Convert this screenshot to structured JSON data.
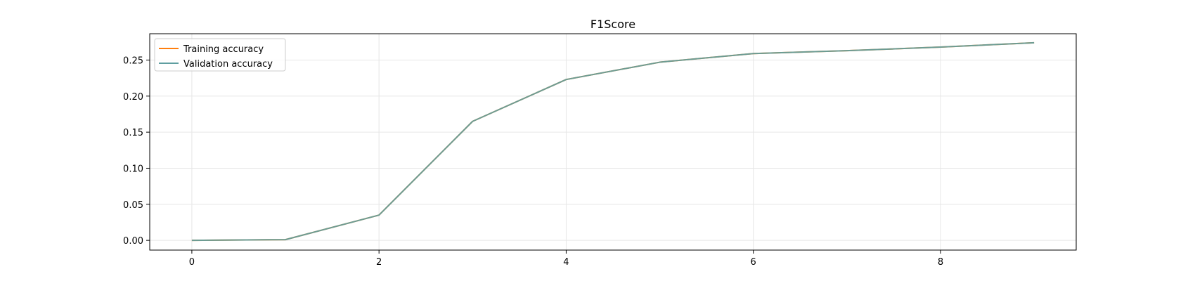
{
  "chart_data": {
    "type": "line",
    "title": "F1Score",
    "xlabel": "",
    "ylabel": "",
    "x": [
      0,
      1,
      2,
      3,
      4,
      5,
      6,
      7,
      8,
      9
    ],
    "xlim": [
      -0.45,
      9.45
    ],
    "ylim": [
      -0.0135,
      0.2865
    ],
    "xticks": [
      0,
      2,
      4,
      6,
      8
    ],
    "xtick_labels": [
      "0",
      "2",
      "4",
      "6",
      "8"
    ],
    "yticks": [
      0.0,
      0.05,
      0.1,
      0.15,
      0.2,
      0.25
    ],
    "ytick_labels": [
      "0.00",
      "0.05",
      "0.10",
      "0.15",
      "0.20",
      "0.25"
    ],
    "grid": true,
    "legend_position": "top-left",
    "series": [
      {
        "name": "Training accuracy",
        "color": "#ff7f0e",
        "values": [
          0.0,
          0.001,
          0.035,
          0.165,
          0.223,
          0.247,
          0.259,
          0.263,
          0.268,
          0.274
        ]
      },
      {
        "name": "Validation accuracy",
        "color": "#5f9ea0",
        "values": [
          0.0,
          0.001,
          0.035,
          0.165,
          0.223,
          0.247,
          0.259,
          0.263,
          0.268,
          0.274
        ]
      }
    ]
  }
}
